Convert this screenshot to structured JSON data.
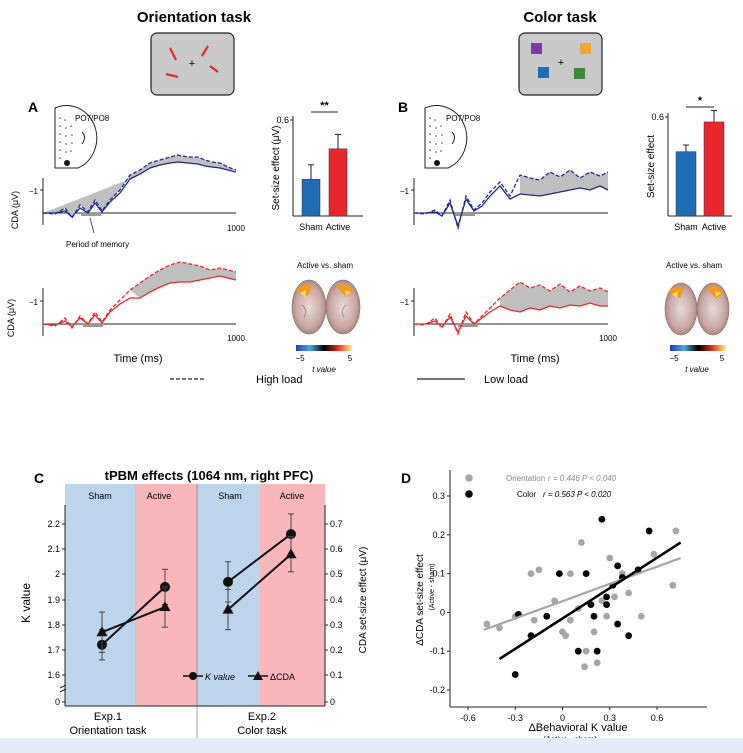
{
  "titles": {
    "orientation": "Orientation task",
    "color": "Color task",
    "tpbm": "tPBM effects (1064 nm, right PFC)"
  },
  "panel_letters": {
    "a": "A",
    "b": "B",
    "c": "C",
    "d": "D"
  },
  "electrode_label": "PO7/PO8",
  "cda_axis": {
    "ylabel": "CDA  (μV)",
    "tick_m1": "−1",
    "tick_1000": "1000",
    "xlabel": "Time (ms)",
    "memory_note": "Period of memory"
  },
  "active_vs_sham": "Active vs. sham",
  "colorbar": {
    "min": "−5",
    "max": "5",
    "label": "t value"
  },
  "legend": {
    "high": "High load",
    "low": "Low load"
  },
  "colors": {
    "sham_blue": "#1f6db5",
    "active_red": "#e8272c",
    "sham_bg": "#bcd5ec",
    "active_bg": "#f7b7bb",
    "orientation_gray": "#a6a6a6",
    "color_black": "#000000"
  },
  "chart_data": [
    {
      "id": "A-bar",
      "type": "bar",
      "ylabel": "Set-size effect (μV)",
      "yticks": [
        "0.6",
        "0"
      ],
      "ylim": [
        0,
        0.6
      ],
      "categories": [
        "Sham",
        "Active"
      ],
      "values": [
        0.23,
        0.42
      ],
      "errors": [
        0.09,
        0.09
      ],
      "significance": "**"
    },
    {
      "id": "B-bar",
      "type": "bar",
      "ylabel": "Set-size effect",
      "yticks": [
        "0.6",
        "0"
      ],
      "ylim": [
        0,
        0.6
      ],
      "categories": [
        "Sham",
        "Active"
      ],
      "values": [
        0.39,
        0.57
      ],
      "errors": [
        0.04,
        0.07
      ],
      "significance": "*"
    },
    {
      "id": "C",
      "type": "line",
      "header": [
        "Sham",
        "Active",
        "Sham",
        "Active"
      ],
      "ylabel_left": "K value",
      "ylabel_right": "CDA set-size effect (μV)",
      "left_ticks": [
        "2.2",
        "2.1",
        "2",
        "1.9",
        "1.8",
        "1.7",
        "1.6",
        "0"
      ],
      "right_ticks": [
        "0.7",
        "0.6",
        "0.5",
        "0.4",
        "0.3",
        "0.2",
        "0.1",
        "0"
      ],
      "groups": [
        {
          "line1": "Exp.1",
          "line2": "Orientation task"
        },
        {
          "line1": "Exp.2",
          "line2": "Color task"
        }
      ],
      "series": [
        {
          "name": "K value",
          "marker": "circle",
          "values": [
            1.72,
            1.95,
            1.97,
            2.16
          ],
          "errors": [
            0.06,
            0.07,
            0.08,
            0.08
          ]
        },
        {
          "name": "ΔCDA",
          "marker": "triangle",
          "values": [
            0.27,
            0.37,
            0.36,
            0.58
          ],
          "errors": [
            0.08,
            0.08,
            0.08,
            0.07
          ]
        }
      ]
    },
    {
      "id": "D",
      "type": "scatter",
      "xlabel": "ΔBehavioral K value",
      "xlabel_sub": "(Active - sham)",
      "ylabel": "ΔCDA set-size effect",
      "ylabel_sub": "(Active - sham)",
      "xticks": [
        "-0.6",
        "-0.3",
        "0",
        "0.3",
        "0.6"
      ],
      "yticks": [
        "0.3",
        "0.2",
        "0.1",
        "0",
        "-0.1",
        "-0.2"
      ],
      "xlim": [
        -0.65,
        0.8
      ],
      "ylim": [
        -0.22,
        0.33
      ],
      "legend": [
        {
          "name": "Orientation",
          "stat": "r = 0.446  P < 0.040"
        },
        {
          "name": "Color",
          "stat": "r = 0.563 P < 0.020"
        }
      ],
      "series": [
        {
          "name": "Orientation",
          "points": [
            [
              -0.48,
              -0.03
            ],
            [
              -0.4,
              -0.04
            ],
            [
              -0.3,
              -0.01
            ],
            [
              -0.2,
              0.1
            ],
            [
              -0.15,
              0.11
            ],
            [
              -0.18,
              -0.02
            ],
            [
              -0.1,
              -0.01
            ],
            [
              -0.05,
              0.03
            ],
            [
              0.0,
              -0.05
            ],
            [
              0.02,
              -0.06
            ],
            [
              0.05,
              -0.02
            ],
            [
              0.1,
              0.01
            ],
            [
              0.12,
              0.18
            ],
            [
              0.15,
              -0.1
            ],
            [
              0.18,
              0.02
            ],
            [
              0.2,
              -0.05
            ],
            [
              0.22,
              -0.13
            ],
            [
              0.25,
              0.03
            ],
            [
              0.28,
              -0.01
            ],
            [
              0.3,
              0.14
            ],
            [
              0.33,
              0.04
            ],
            [
              0.38,
              0.1
            ],
            [
              0.42,
              0.05
            ],
            [
              0.5,
              -0.01
            ],
            [
              0.58,
              0.15
            ],
            [
              0.72,
              0.21
            ],
            [
              0.7,
              0.07
            ],
            [
              0.05,
              0.1
            ],
            [
              0.14,
              -0.14
            ]
          ],
          "fit": [
            [
              -0.5,
              -0.045
            ],
            [
              0.75,
              0.14
            ]
          ]
        },
        {
          "name": "Color",
          "points": [
            [
              -0.3,
              -0.16
            ],
            [
              -0.28,
              -0.005
            ],
            [
              -0.2,
              -0.06
            ],
            [
              -0.1,
              -0.01
            ],
            [
              -0.02,
              0.1
            ],
            [
              0.1,
              -0.1
            ],
            [
              0.15,
              0.1
            ],
            [
              0.18,
              0.02
            ],
            [
              0.2,
              -0.01
            ],
            [
              0.25,
              0.24
            ],
            [
              0.28,
              0.02
            ],
            [
              0.32,
              0.07
            ],
            [
              0.35,
              -0.03
            ],
            [
              0.38,
              0.09
            ],
            [
              0.42,
              -0.06
            ],
            [
              0.48,
              0.11
            ],
            [
              0.55,
              0.21
            ],
            [
              0.28,
              0.04
            ],
            [
              0.22,
              -0.1
            ],
            [
              0.35,
              0.12
            ]
          ],
          "fit": [
            [
              -0.4,
              -0.12
            ],
            [
              0.75,
              0.18
            ]
          ]
        }
      ]
    }
  ]
}
